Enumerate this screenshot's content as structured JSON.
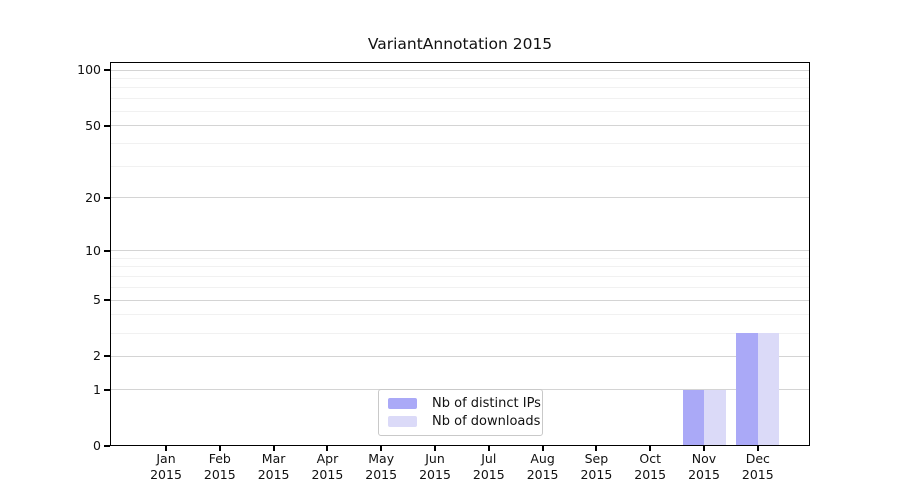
{
  "chart_data": {
    "type": "bar",
    "title": "VariantAnnotation 2015",
    "x_categories": [
      "Jan",
      "Feb",
      "Mar",
      "Apr",
      "May",
      "Jun",
      "Jul",
      "Aug",
      "Sep",
      "Oct",
      "Nov",
      "Dec"
    ],
    "x_year": "2015",
    "series": [
      {
        "name": "Nb of distinct IPs",
        "color": "#aaa9f7",
        "values": [
          0,
          0,
          0,
          0,
          0,
          0,
          0,
          0,
          0,
          0,
          1,
          3
        ]
      },
      {
        "name": "Nb of downloads",
        "color": "#dbdaf8",
        "values": [
          0,
          0,
          0,
          0,
          0,
          0,
          0,
          0,
          0,
          0,
          1,
          3
        ]
      }
    ],
    "y_scale": "log1p",
    "y_major_ticks": [
      0,
      1,
      2,
      5,
      10,
      20,
      50,
      100
    ],
    "y_minor_gridlines": [
      3,
      4,
      6,
      7,
      8,
      9,
      30,
      40,
      60,
      70,
      80,
      90
    ],
    "ylim": [
      0,
      110
    ],
    "grid": "horizontal",
    "legend_position": "bottom-center-inside",
    "colors": {
      "axis": "#000000",
      "grid_major": "#d4d4d4",
      "grid_minor": "#f1f1f1",
      "text": "#111111",
      "legend_border": "#c9c9c9",
      "background": "#ffffff"
    }
  }
}
